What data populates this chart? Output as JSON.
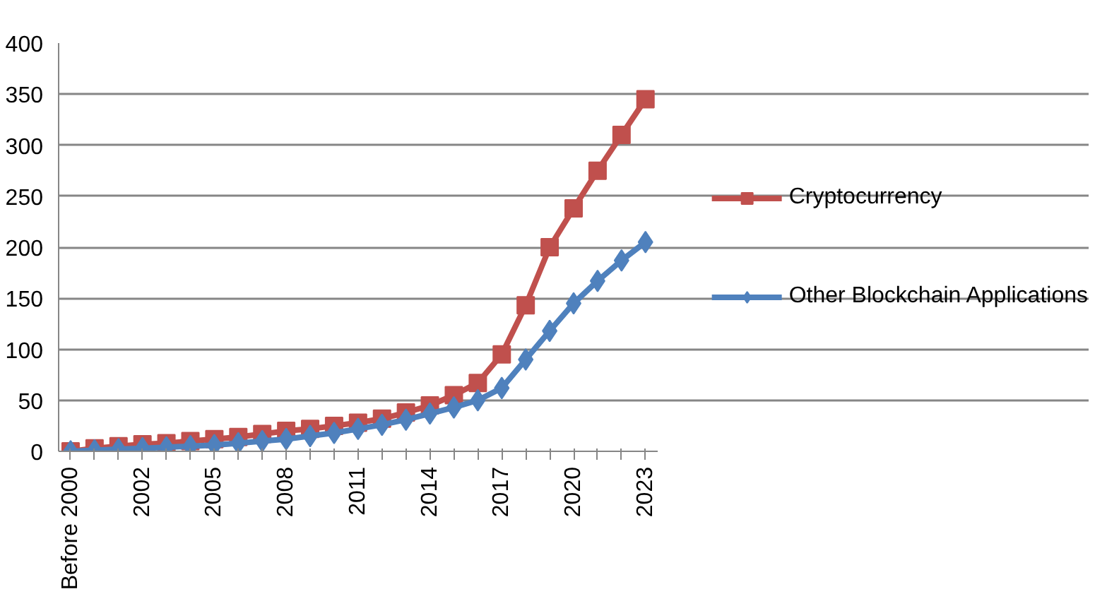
{
  "chart_data": {
    "type": "line",
    "categories": [
      "Before 2000",
      null,
      null,
      "2002",
      null,
      null,
      "2005",
      null,
      null,
      "2008",
      null,
      null,
      "2011",
      null,
      null,
      "2014",
      null,
      null,
      "2017",
      null,
      null,
      "2020",
      null,
      null,
      "2023"
    ],
    "series": [
      {
        "name": "Cryptocurrency",
        "color": "#c0504d",
        "marker": "square",
        "values": [
          0,
          3,
          5,
          7,
          8,
          10,
          12,
          14,
          17,
          20,
          22,
          25,
          28,
          32,
          38,
          45,
          55,
          67,
          95,
          143,
          200,
          238,
          275,
          310,
          345
        ]
      },
      {
        "name": "Other Blockchain Applications",
        "color": "#4f81bd",
        "marker": "diamond",
        "values": [
          0,
          1,
          2,
          3,
          4,
          5,
          6,
          8,
          10,
          12,
          15,
          18,
          22,
          26,
          31,
          37,
          43,
          50,
          62,
          90,
          118,
          145,
          167,
          187,
          205
        ]
      }
    ],
    "ylim": [
      0,
      400
    ],
    "yticks": [
      0,
      50,
      100,
      150,
      200,
      250,
      300,
      350,
      400
    ],
    "grid": "y",
    "legend": "right",
    "line_style": "solid"
  }
}
